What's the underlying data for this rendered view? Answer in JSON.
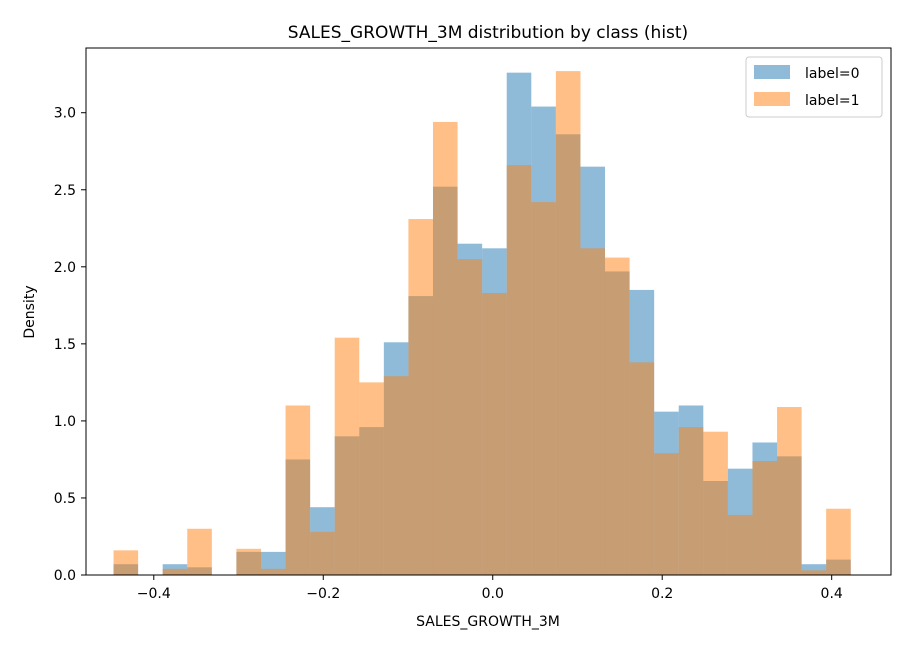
{
  "chart_data": {
    "type": "bar",
    "title": "SALES_GROWTH_3M distribution by class (hist)",
    "xlabel": "SALES_GROWTH_3M",
    "ylabel": "Density",
    "xlim": [
      -0.48,
      0.47
    ],
    "ylim": [
      0,
      3.42
    ],
    "xticks": [
      {
        "value": -0.4,
        "label": "−0.4"
      },
      {
        "value": -0.2,
        "label": "−0.2"
      },
      {
        "value": 0.0,
        "label": "0.0"
      },
      {
        "value": 0.2,
        "label": "0.2"
      },
      {
        "value": 0.4,
        "label": "0.4"
      }
    ],
    "yticks": [
      {
        "value": 0.0,
        "label": "0.0"
      },
      {
        "value": 0.5,
        "label": "0.5"
      },
      {
        "value": 1.0,
        "label": "1.0"
      },
      {
        "value": 1.5,
        "label": "1.5"
      },
      {
        "value": 2.0,
        "label": "2.0"
      },
      {
        "value": 2.5,
        "label": "2.5"
      },
      {
        "value": 3.0,
        "label": "3.0"
      }
    ],
    "bin_edges": [
      -0.4475,
      -0.4185,
      -0.3895,
      -0.3605,
      -0.3315,
      -0.3025,
      -0.2735,
      -0.2445,
      -0.2155,
      -0.1865,
      -0.1575,
      -0.1285,
      -0.0995,
      -0.0705,
      -0.0415,
      -0.0125,
      0.0165,
      0.0455,
      0.0745,
      0.1035,
      0.1325,
      0.1615,
      0.1905,
      0.2195,
      0.2485,
      0.2775,
      0.3065,
      0.3355,
      0.3645,
      0.3935,
      0.4225
    ],
    "grid": false,
    "legend_position": "top-right",
    "series": [
      {
        "name": "label=0",
        "color": "#1f77b4",
        "alpha": 0.5,
        "values": [
          0.07,
          0.0,
          0.07,
          0.05,
          0.0,
          0.15,
          0.15,
          0.75,
          0.44,
          0.9,
          0.96,
          1.51,
          1.81,
          2.52,
          2.15,
          2.12,
          3.26,
          3.04,
          2.86,
          2.65,
          1.97,
          1.85,
          1.06,
          1.1,
          0.61,
          0.69,
          0.86,
          0.77,
          0.07,
          0.1
        ]
      },
      {
        "name": "label=1",
        "color": "#ff7f0e",
        "alpha": 0.5,
        "values": [
          0.16,
          0.0,
          0.04,
          0.3,
          0.0,
          0.17,
          0.04,
          1.1,
          0.28,
          1.54,
          1.25,
          1.29,
          2.31,
          2.94,
          2.05,
          1.83,
          2.66,
          2.42,
          3.27,
          2.12,
          2.06,
          1.38,
          0.79,
          0.96,
          0.93,
          0.39,
          0.74,
          1.09,
          0.03,
          0.43
        ]
      }
    ]
  }
}
